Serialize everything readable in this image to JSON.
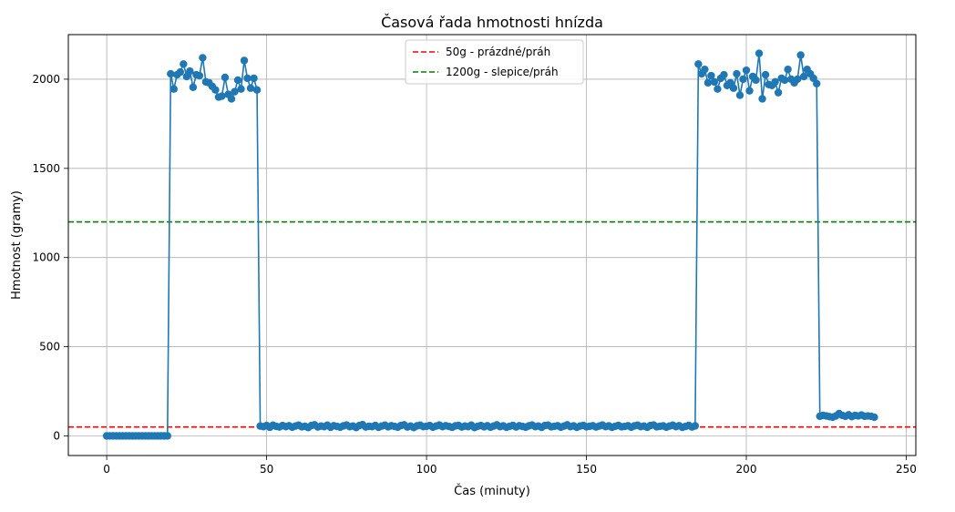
{
  "chart_data": {
    "type": "line",
    "title": "Časová řada hmotnosti hnízda",
    "xlabel": "Čas (minuty)",
    "ylabel": "Hmotnost (gramy)",
    "xlim": [
      -12,
      253
    ],
    "ylim": [
      -110,
      2250
    ],
    "xticks": [
      0,
      50,
      100,
      150,
      200,
      250
    ],
    "yticks": [
      0,
      500,
      1000,
      1500,
      2000
    ],
    "grid": true,
    "legend_position": "top-center",
    "colors": {
      "series": "#1f77b4",
      "threshold_empty": "#d62728",
      "threshold_hen": "#008000"
    },
    "thresholds": [
      {
        "name": "50g - prázdné/práh",
        "y": 50,
        "color": "#ff0000",
        "style": "dashed"
      },
      {
        "name": "1200g - slepice/práh",
        "y": 1200,
        "color": "#008000",
        "style": "dashed"
      }
    ],
    "series": [
      {
        "marker": "circle",
        "x": [
          0,
          1,
          2,
          3,
          4,
          5,
          6,
          7,
          8,
          9,
          10,
          11,
          12,
          13,
          14,
          15,
          16,
          17,
          18,
          19,
          20,
          21,
          22,
          23,
          24,
          25,
          26,
          27,
          28,
          29,
          30,
          31,
          32,
          33,
          34,
          35,
          36,
          37,
          38,
          39,
          40,
          41,
          42,
          43,
          44,
          45,
          46,
          47,
          48,
          49,
          50,
          51,
          52,
          53,
          54,
          55,
          56,
          57,
          58,
          59,
          60,
          61,
          62,
          63,
          64,
          65,
          66,
          67,
          68,
          69,
          70,
          71,
          72,
          73,
          74,
          75,
          76,
          77,
          78,
          79,
          80,
          81,
          82,
          83,
          84,
          85,
          86,
          87,
          88,
          89,
          90,
          91,
          92,
          93,
          94,
          95,
          96,
          97,
          98,
          99,
          100,
          101,
          102,
          103,
          104,
          105,
          106,
          107,
          108,
          109,
          110,
          111,
          112,
          113,
          114,
          115,
          116,
          117,
          118,
          119,
          120,
          121,
          122,
          123,
          124,
          125,
          126,
          127,
          128,
          129,
          130,
          131,
          132,
          133,
          134,
          135,
          136,
          137,
          138,
          139,
          140,
          141,
          142,
          143,
          144,
          145,
          146,
          147,
          148,
          149,
          150,
          151,
          152,
          153,
          154,
          155,
          156,
          157,
          158,
          159,
          160,
          161,
          162,
          163,
          164,
          165,
          166,
          167,
          168,
          169,
          170,
          171,
          172,
          173,
          174,
          175,
          176,
          177,
          178,
          179,
          180,
          181,
          182,
          183,
          184,
          185,
          186,
          187,
          188,
          189,
          190,
          191,
          192,
          193,
          194,
          195,
          196,
          197,
          198,
          199,
          200,
          201,
          202,
          203,
          204,
          205,
          206,
          207,
          208,
          209,
          210,
          211,
          212,
          213,
          214,
          215,
          216,
          217,
          218,
          219,
          220,
          221,
          222,
          223,
          224,
          225,
          226,
          227,
          228,
          229,
          230,
          231,
          232,
          233,
          234,
          235,
          236,
          237,
          238,
          239,
          240
        ],
        "y": [
          0,
          0,
          0,
          0,
          0,
          0,
          0,
          0,
          0,
          0,
          0,
          0,
          0,
          0,
          0,
          0,
          0,
          0,
          0,
          0,
          2030,
          1945,
          2025,
          2040,
          2085,
          2015,
          2045,
          1955,
          2025,
          2020,
          2120,
          1985,
          1980,
          1960,
          1940,
          1900,
          1905,
          2010,
          1915,
          1890,
          1930,
          1995,
          1945,
          2105,
          2005,
          1950,
          2005,
          1940,
          55,
          52,
          58,
          48,
          60,
          53,
          50,
          58,
          52,
          57,
          49,
          55,
          60,
          51,
          54,
          47,
          58,
          62,
          50,
          55,
          52,
          60,
          48,
          57,
          53,
          49,
          56,
          61,
          52,
          55,
          47,
          58,
          63,
          50,
          54,
          52,
          59,
          48,
          55,
          60,
          51,
          57,
          53,
          49,
          58,
          62,
          50,
          55,
          47,
          56,
          60,
          52,
          54,
          58,
          49,
          55,
          61,
          52,
          57,
          53,
          48,
          56,
          59,
          50,
          55,
          52,
          60,
          47,
          54,
          58,
          51,
          57,
          49,
          55,
          62,
          52,
          56,
          48,
          54,
          59,
          50,
          57,
          53,
          49,
          56,
          61,
          52,
          55,
          48,
          58,
          60,
          51,
          54,
          57,
          49,
          55,
          62,
          52,
          56,
          48,
          55,
          59,
          51,
          54,
          57,
          50,
          55,
          61,
          52,
          56,
          48,
          54,
          59,
          51,
          53,
          57,
          49,
          56,
          60,
          52,
          55,
          48,
          58,
          61,
          51,
          54,
          56,
          49,
          55,
          60,
          52,
          57,
          48,
          53,
          59,
          50,
          56,
          2085,
          2030,
          2055,
          1980,
          2020,
          1985,
          1945,
          2005,
          2025,
          1965,
          1980,
          1950,
          2030,
          1910,
          2000,
          2050,
          1935,
          2015,
          1995,
          2145,
          1890,
          2025,
          1970,
          1965,
          1985,
          1925,
          2005,
          1995,
          2055,
          2000,
          1980,
          2000,
          2135,
          2015,
          2055,
          2030,
          2005,
          1975,
          110,
          115,
          112,
          108,
          105,
          112,
          125,
          115,
          110,
          118,
          108,
          115,
          112,
          117,
          110,
          112,
          110,
          105
        ]
      }
    ]
  }
}
